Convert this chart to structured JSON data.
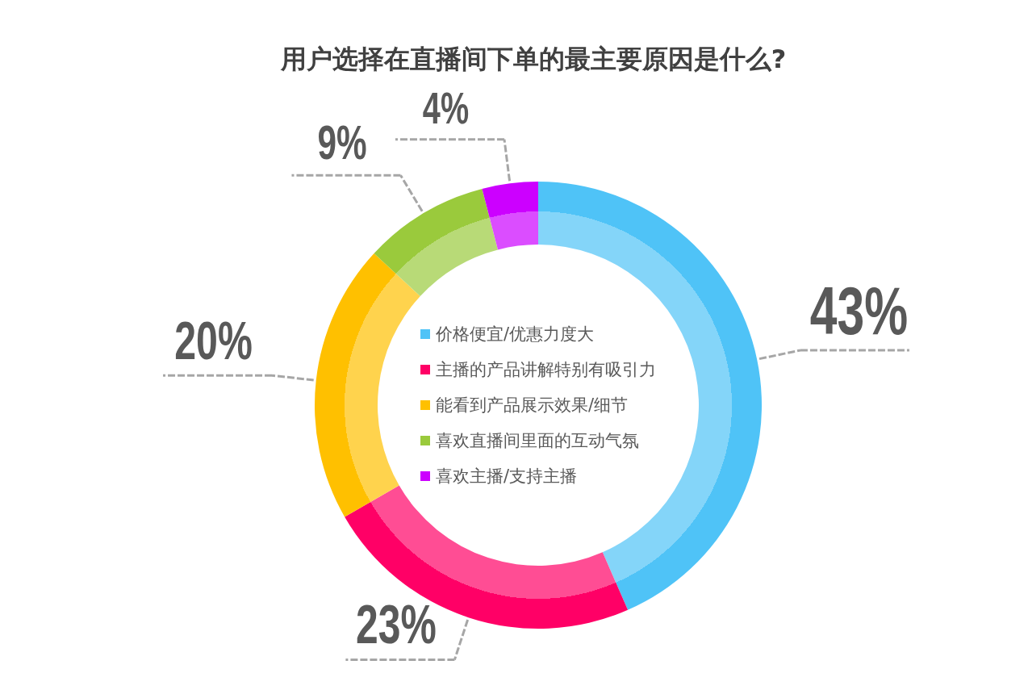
{
  "chart_data": {
    "type": "donut",
    "title": "用户选择在直播间下单的最主要原因是什么?",
    "categories": [
      "价格便宜/优惠力度大",
      "主播的产品讲解特别有吸引力",
      "能看到产品展示效果/细节",
      "喜欢直播间里面的互动气氛",
      "喜欢主播/支持主播"
    ],
    "values": [
      43,
      23,
      20,
      9,
      4
    ],
    "colors": [
      "#4fc3f7",
      "#ff0066",
      "#ffc000",
      "#9aca3c",
      "#cc00ff"
    ],
    "value_labels": [
      "43%",
      "23%",
      "20%",
      "9%",
      "4%"
    ],
    "legend": "center"
  }
}
